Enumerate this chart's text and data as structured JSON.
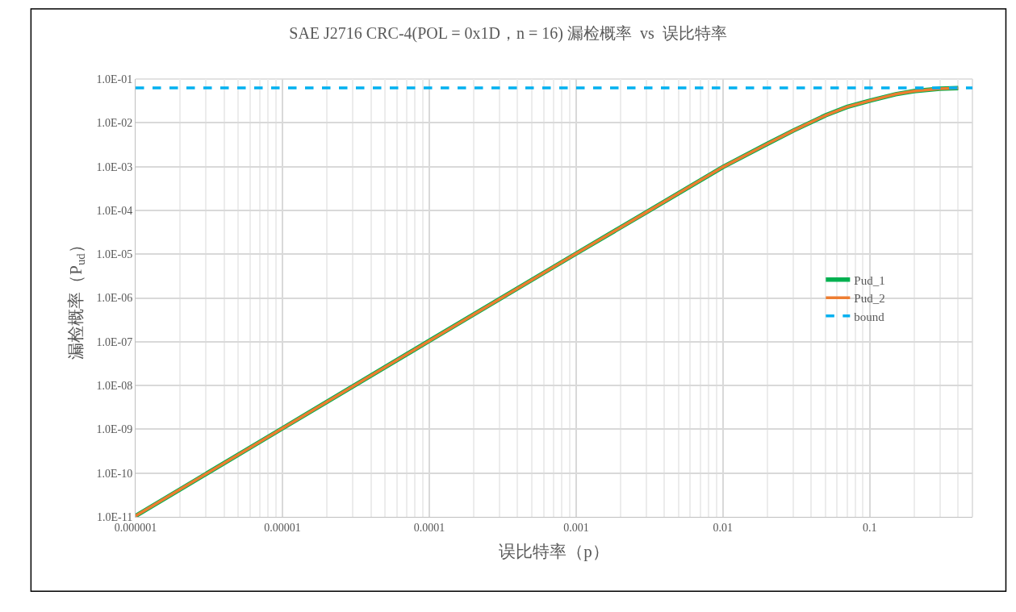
{
  "chart_data": {
    "type": "line",
    "title": "SAE J2716 CRC-4(POL = 0x1D，n = 16) 漏检概率  vs  误比特率",
    "xlabel": "误比特率（p）",
    "ylabel": "漏检概率（P$_{ud}$）",
    "log": "xy",
    "grid": true,
    "legend": "right",
    "marker": "none",
    "xlim": [
      1e-06,
      0.5
    ],
    "ylim": [
      1e-11,
      0.1
    ],
    "xticks": [
      {
        "value": 1e-06,
        "label": "0.000001"
      },
      {
        "value": 1e-05,
        "label": "0.00001"
      },
      {
        "value": 0.0001,
        "label": "0.0001"
      },
      {
        "value": 0.001,
        "label": "0.001"
      },
      {
        "value": 0.01,
        "label": "0.01"
      },
      {
        "value": 0.1,
        "label": "0.1"
      }
    ],
    "yticks": [
      {
        "value": 1e-11,
        "label": "1.0E-11"
      },
      {
        "value": 1e-10,
        "label": "1.0E-10"
      },
      {
        "value": 1e-09,
        "label": "1.0E-09"
      },
      {
        "value": 1e-08,
        "label": "1.0E-08"
      },
      {
        "value": 1e-07,
        "label": "1.0E-07"
      },
      {
        "value": 1e-06,
        "label": "1.0E-06"
      },
      {
        "value": 1e-05,
        "label": "1.0E-05"
      },
      {
        "value": 0.0001,
        "label": "1.0E-04"
      },
      {
        "value": 0.001,
        "label": "1.0E-03"
      },
      {
        "value": 0.01,
        "label": "1.0E-02"
      },
      {
        "value": 0.1,
        "label": "1.0E-01"
      }
    ],
    "series": [
      {
        "name": "Pud_1",
        "color": "#00b050",
        "line_style": "solid",
        "x": [
          1e-06,
          1e-05,
          0.0001,
          0.001,
          0.003,
          0.01,
          0.02,
          0.03,
          0.05,
          0.07,
          0.1,
          0.15,
          0.2,
          0.3,
          0.4
        ],
        "values": [
          1.05e-11,
          1.05e-09,
          1.05e-07,
          1.03e-05,
          9e-05,
          0.00098,
          0.0033,
          0.0066,
          0.0148,
          0.023,
          0.032,
          0.045,
          0.053,
          0.06,
          0.062
        ]
      },
      {
        "name": "Pud_2",
        "color": "#ed7d31",
        "line_style": "solid",
        "x": [
          1e-06,
          1e-05,
          0.0001,
          0.001,
          0.003,
          0.01,
          0.02,
          0.03,
          0.05,
          0.07,
          0.1,
          0.15,
          0.2,
          0.3,
          0.4
        ],
        "values": [
          1.05e-11,
          1.05e-09,
          1.05e-07,
          1.03e-05,
          9e-05,
          0.00098,
          0.0033,
          0.0066,
          0.0148,
          0.023,
          0.032,
          0.045,
          0.053,
          0.06,
          0.062
        ]
      },
      {
        "name": "bound",
        "color": "#00b0f0",
        "line_style": "dashed",
        "x": [
          1e-06,
          0.5
        ],
        "values": [
          0.0625,
          0.0625
        ]
      }
    ]
  }
}
